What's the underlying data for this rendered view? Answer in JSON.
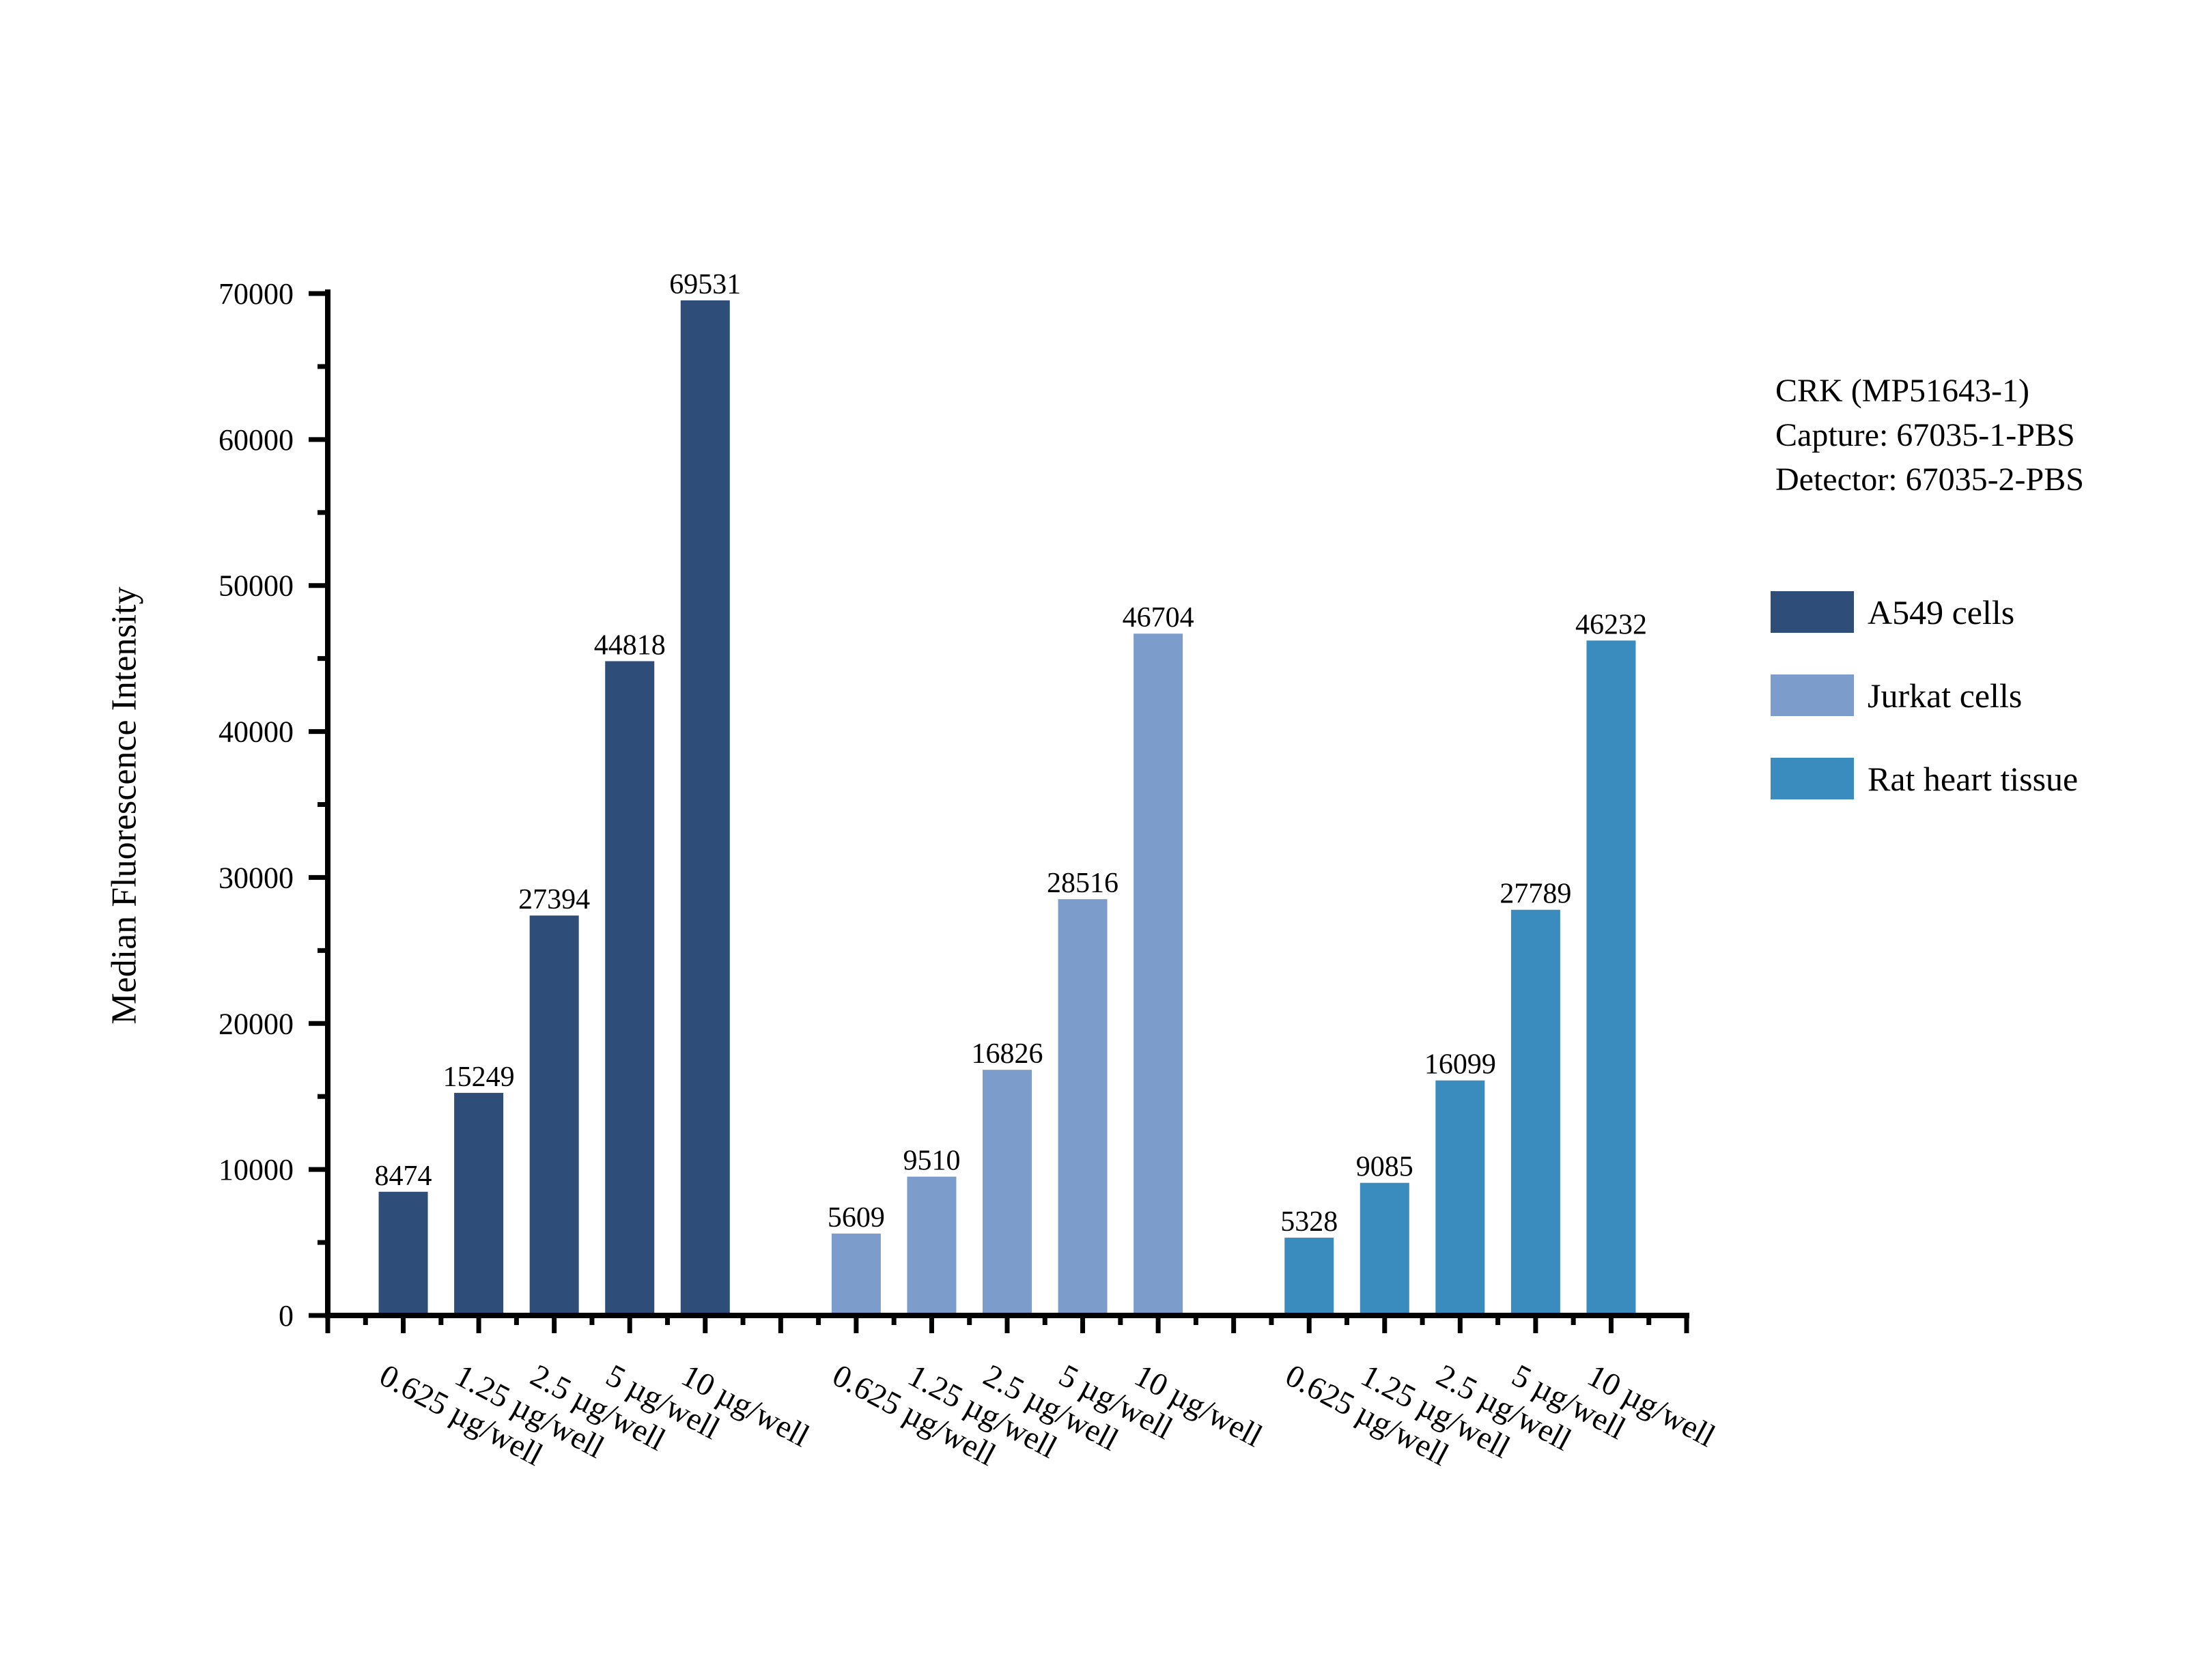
{
  "annotation": {
    "lines": [
      "CRK (MP51643-1)",
      "Capture: 67035-1-PBS",
      "Detector: 67035-2-PBS"
    ]
  },
  "chart_data": {
    "type": "bar",
    "title": "",
    "xlabel": "",
    "ylabel": "Median Fluorescence Intensity",
    "ylim": [
      0,
      70000
    ],
    "y_ticks": [
      0,
      10000,
      20000,
      30000,
      40000,
      50000,
      60000,
      70000
    ],
    "y_minor_tick_step": 5000,
    "grid": false,
    "legend_position": "right",
    "bar_value_labels": true,
    "categories": [
      "0.625 µg/well",
      "1.25 µg/well",
      "2.5 µg/well",
      "5 µg/well",
      "10 µg/well"
    ],
    "series": [
      {
        "name": "A549 cells",
        "color": "#2E4D79",
        "values": [
          8474,
          15249,
          27394,
          44818,
          69531
        ]
      },
      {
        "name": "Jurkat cells",
        "color": "#7C9DCC",
        "values": [
          5609,
          9510,
          16826,
          28516,
          46704
        ]
      },
      {
        "name": "Rat heart tissue",
        "color": "#3A8CBE",
        "values": [
          5328,
          9085,
          16099,
          27789,
          46232
        ]
      }
    ],
    "axis_color": "#000000"
  }
}
